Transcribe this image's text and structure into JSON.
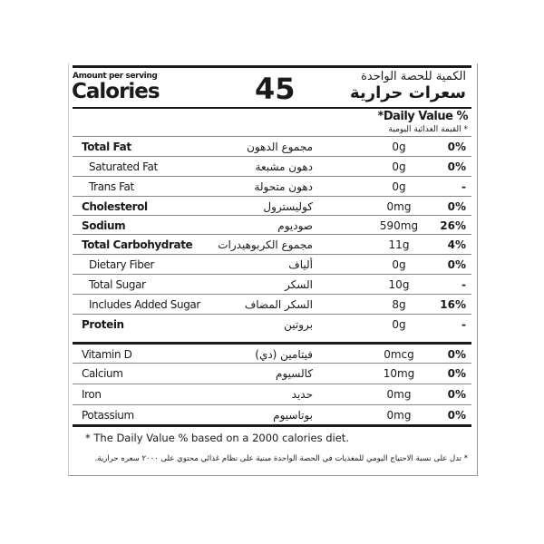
{
  "header": {
    "amount_per_serving": "Amount per serving",
    "calories_label": "Calories",
    "calories_value": "45",
    "amount_ar": "الكمية للحصة الواحدة",
    "calories_ar": "سعرات حرارية",
    "daily_value": "*Daily Value %",
    "daily_value_ar": "* القيمة الغذائية اليومية"
  },
  "rows": [
    {
      "en": "Total Fat",
      "ar": "مجموع الدهون",
      "amount": "0g",
      "pct": "0%",
      "bold": true,
      "indent": false
    },
    {
      "en": "Saturated Fat",
      "ar": "دهون مشبعة",
      "amount": "0g",
      "pct": "0%",
      "bold": false,
      "indent": true
    },
    {
      "en": "Trans Fat",
      "ar": "دهون متحولة",
      "amount": "0g",
      "pct": "-",
      "bold": false,
      "indent": true
    },
    {
      "en": "Cholesterol",
      "ar": "كوليسترول",
      "amount": "0mg",
      "pct": "0%",
      "bold": true,
      "indent": false
    },
    {
      "en": "Sodium",
      "ar": "صوديوم",
      "amount": "590mg",
      "pct": "26%",
      "bold": true,
      "indent": false
    },
    {
      "en": "Total Carbohydrate",
      "ar": "مجموع الكربوهيدرات",
      "amount": "11g",
      "pct": "4%",
      "bold": true,
      "indent": false
    },
    {
      "en": "Dietary Fiber",
      "ar": "ألياف",
      "amount": "0g",
      "pct": "0%",
      "bold": false,
      "indent": true
    },
    {
      "en": "Total Sugar",
      "ar": "السكر",
      "amount": "10g",
      "pct": "-",
      "bold": false,
      "indent": true
    },
    {
      "en": "Includes Added Sugar",
      "ar": "السكر المضاف",
      "amount": "8g",
      "pct": "16%",
      "bold": false,
      "indent": true
    },
    {
      "en": "Protein",
      "ar": "بروتين",
      "amount": "0g",
      "pct": "-",
      "bold": true,
      "indent": false
    },
    {
      "en": "Vitamin D",
      "ar": "فيتامين (دي)",
      "amount": "0mcg",
      "pct": "0%",
      "bold": false,
      "indent": false
    },
    {
      "en": "Calcium",
      "ar": "كالسيوم",
      "amount": "10mg",
      "pct": "0%",
      "bold": false,
      "indent": false
    },
    {
      "en": "Iron",
      "ar": "حديد",
      "amount": "0mg",
      "pct": "0%",
      "bold": false,
      "indent": false
    },
    {
      "en": "Potassium",
      "ar": "بوتاسيوم",
      "amount": "0mg",
      "pct": "0%",
      "bold": false,
      "indent": false
    }
  ],
  "footer": {
    "note_en": "* The Daily Value % based on a 2000 calories diet.",
    "note_ar": "* تدل على نسبة الاحتياج اليومي للمغذيات في الحصة الواحدة مبنية على نظام غذائي محتوي على ٢٠٠٠ سعره حرارية."
  }
}
